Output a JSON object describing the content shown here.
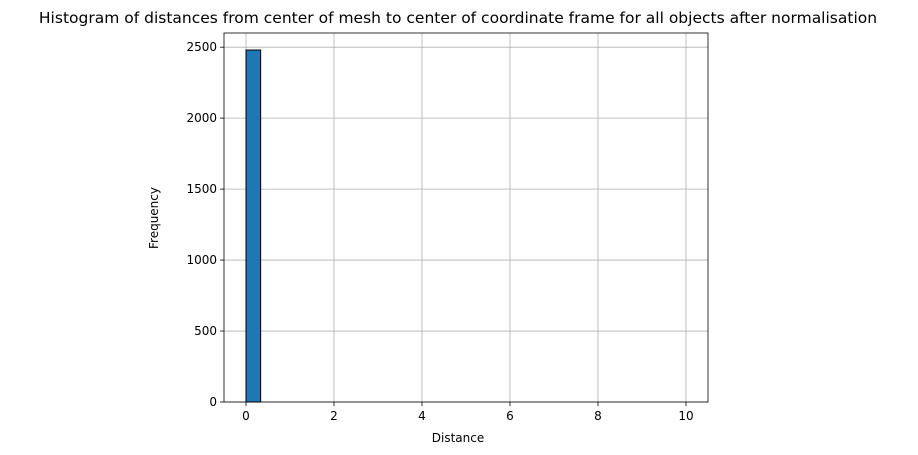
{
  "chart_data": {
    "type": "bar",
    "title": "Histogram of distances from center of mesh to center of coordinate frame for all objects after normalisation",
    "xlabel": "Distance",
    "ylabel": "Frequency",
    "xlim": [
      -0.5,
      10.5
    ],
    "ylim": [
      0,
      2600
    ],
    "xticks": [
      0,
      2,
      4,
      6,
      8,
      10
    ],
    "yticks": [
      0,
      500,
      1000,
      1500,
      2000,
      2500
    ],
    "grid": true,
    "bar_color": "#1f77b4",
    "edge_color": "#000000",
    "bins": [
      {
        "x0": 0.0,
        "x1": 0.333,
        "count": 2480
      },
      {
        "x0": 0.333,
        "x1": 0.667,
        "count": 0
      },
      {
        "x0": 0.667,
        "x1": 1.0,
        "count": 0
      },
      {
        "x0": 1.0,
        "x1": 1.333,
        "count": 0
      },
      {
        "x0": 1.333,
        "x1": 1.667,
        "count": 0
      },
      {
        "x0": 1.667,
        "x1": 2.0,
        "count": 0
      },
      {
        "x0": 2.0,
        "x1": 2.333,
        "count": 0
      },
      {
        "x0": 2.333,
        "x1": 2.667,
        "count": 0
      },
      {
        "x0": 2.667,
        "x1": 3.0,
        "count": 0
      },
      {
        "x0": 3.0,
        "x1": 3.333,
        "count": 0
      },
      {
        "x0": 3.333,
        "x1": 3.667,
        "count": 0
      },
      {
        "x0": 3.667,
        "x1": 4.0,
        "count": 0
      },
      {
        "x0": 4.0,
        "x1": 4.333,
        "count": 0
      },
      {
        "x0": 4.333,
        "x1": 4.667,
        "count": 0
      },
      {
        "x0": 4.667,
        "x1": 5.0,
        "count": 0
      },
      {
        "x0": 5.0,
        "x1": 5.333,
        "count": 0
      },
      {
        "x0": 5.333,
        "x1": 5.667,
        "count": 0
      },
      {
        "x0": 5.667,
        "x1": 6.0,
        "count": 0
      },
      {
        "x0": 6.0,
        "x1": 6.333,
        "count": 0
      },
      {
        "x0": 6.333,
        "x1": 6.667,
        "count": 0
      },
      {
        "x0": 6.667,
        "x1": 7.0,
        "count": 0
      },
      {
        "x0": 7.0,
        "x1": 7.333,
        "count": 0
      },
      {
        "x0": 7.333,
        "x1": 7.667,
        "count": 0
      },
      {
        "x0": 7.667,
        "x1": 8.0,
        "count": 0
      },
      {
        "x0": 8.0,
        "x1": 8.333,
        "count": 0
      },
      {
        "x0": 8.333,
        "x1": 8.667,
        "count": 0
      },
      {
        "x0": 8.667,
        "x1": 9.0,
        "count": 0
      },
      {
        "x0": 9.0,
        "x1": 9.333,
        "count": 0
      },
      {
        "x0": 9.333,
        "x1": 9.667,
        "count": 0
      },
      {
        "x0": 9.667,
        "x1": 10.0,
        "count": 0
      }
    ]
  }
}
